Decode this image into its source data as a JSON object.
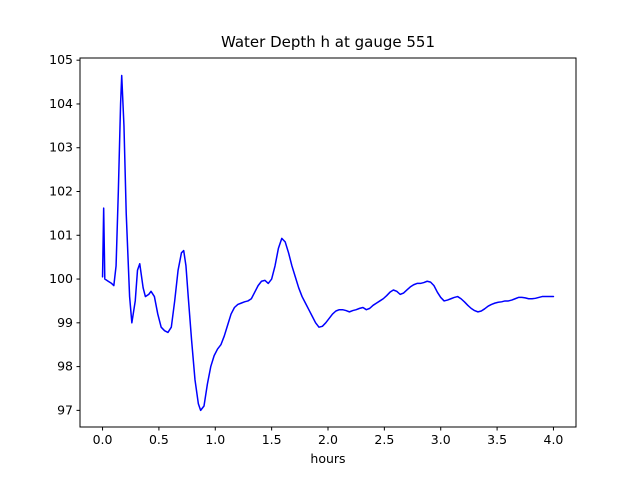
{
  "figure": {
    "background": "#ffffff"
  },
  "chart_data": {
    "type": "line",
    "title": "Water Depth h at gauge 551",
    "xlabel": "hours",
    "ylabel": "",
    "legend": "none",
    "grid": false,
    "line_color": "#0000ff",
    "xlim": [
      -0.2,
      4.2
    ],
    "ylim": [
      96.62,
      105.05
    ],
    "xticks": [
      0.0,
      0.5,
      1.0,
      1.5,
      2.0,
      2.5,
      3.0,
      3.5,
      4.0
    ],
    "xtick_labels": [
      "0.0",
      "0.5",
      "1.0",
      "1.5",
      "2.0",
      "2.5",
      "3.0",
      "3.5",
      "4.0"
    ],
    "yticks": [
      97,
      98,
      99,
      100,
      101,
      102,
      103,
      104,
      105
    ],
    "ytick_labels": [
      "97",
      "98",
      "99",
      "100",
      "101",
      "102",
      "103",
      "104",
      "105"
    ],
    "points": [
      [
        0.0,
        100.05
      ],
      [
        0.01,
        101.62
      ],
      [
        0.02,
        100.0
      ],
      [
        0.05,
        99.95
      ],
      [
        0.08,
        99.9
      ],
      [
        0.1,
        99.85
      ],
      [
        0.12,
        100.3
      ],
      [
        0.14,
        102.0
      ],
      [
        0.16,
        104.0
      ],
      [
        0.17,
        104.65
      ],
      [
        0.19,
        103.5
      ],
      [
        0.21,
        101.5
      ],
      [
        0.24,
        99.6
      ],
      [
        0.26,
        99.0
      ],
      [
        0.29,
        99.5
      ],
      [
        0.31,
        100.2
      ],
      [
        0.33,
        100.35
      ],
      [
        0.36,
        99.8
      ],
      [
        0.38,
        99.6
      ],
      [
        0.41,
        99.65
      ],
      [
        0.43,
        99.72
      ],
      [
        0.46,
        99.6
      ],
      [
        0.49,
        99.2
      ],
      [
        0.52,
        98.9
      ],
      [
        0.55,
        98.82
      ],
      [
        0.58,
        98.78
      ],
      [
        0.61,
        98.9
      ],
      [
        0.64,
        99.5
      ],
      [
        0.67,
        100.2
      ],
      [
        0.7,
        100.6
      ],
      [
        0.72,
        100.65
      ],
      [
        0.74,
        100.3
      ],
      [
        0.76,
        99.6
      ],
      [
        0.79,
        98.6
      ],
      [
        0.82,
        97.7
      ],
      [
        0.85,
        97.15
      ],
      [
        0.87,
        97.0
      ],
      [
        0.9,
        97.1
      ],
      [
        0.93,
        97.6
      ],
      [
        0.96,
        98.0
      ],
      [
        0.99,
        98.25
      ],
      [
        1.02,
        98.4
      ],
      [
        1.05,
        98.5
      ],
      [
        1.08,
        98.7
      ],
      [
        1.11,
        98.95
      ],
      [
        1.14,
        99.2
      ],
      [
        1.17,
        99.35
      ],
      [
        1.2,
        99.42
      ],
      [
        1.23,
        99.45
      ],
      [
        1.26,
        99.48
      ],
      [
        1.29,
        99.5
      ],
      [
        1.32,
        99.55
      ],
      [
        1.35,
        99.7
      ],
      [
        1.38,
        99.85
      ],
      [
        1.41,
        99.95
      ],
      [
        1.44,
        99.97
      ],
      [
        1.47,
        99.9
      ],
      [
        1.5,
        100.0
      ],
      [
        1.53,
        100.3
      ],
      [
        1.56,
        100.7
      ],
      [
        1.59,
        100.93
      ],
      [
        1.62,
        100.85
      ],
      [
        1.65,
        100.6
      ],
      [
        1.68,
        100.3
      ],
      [
        1.71,
        100.05
      ],
      [
        1.74,
        99.8
      ],
      [
        1.77,
        99.6
      ],
      [
        1.8,
        99.45
      ],
      [
        1.83,
        99.3
      ],
      [
        1.86,
        99.15
      ],
      [
        1.89,
        99.0
      ],
      [
        1.92,
        98.9
      ],
      [
        1.95,
        98.92
      ],
      [
        1.98,
        99.0
      ],
      [
        2.01,
        99.1
      ],
      [
        2.04,
        99.2
      ],
      [
        2.07,
        99.27
      ],
      [
        2.1,
        99.3
      ],
      [
        2.13,
        99.3
      ],
      [
        2.16,
        99.28
      ],
      [
        2.19,
        99.25
      ],
      [
        2.22,
        99.28
      ],
      [
        2.25,
        99.3
      ],
      [
        2.28,
        99.33
      ],
      [
        2.31,
        99.35
      ],
      [
        2.34,
        99.3
      ],
      [
        2.37,
        99.33
      ],
      [
        2.4,
        99.4
      ],
      [
        2.43,
        99.45
      ],
      [
        2.46,
        99.5
      ],
      [
        2.49,
        99.55
      ],
      [
        2.52,
        99.62
      ],
      [
        2.55,
        99.7
      ],
      [
        2.58,
        99.75
      ],
      [
        2.61,
        99.72
      ],
      [
        2.64,
        99.65
      ],
      [
        2.67,
        99.68
      ],
      [
        2.7,
        99.75
      ],
      [
        2.73,
        99.82
      ],
      [
        2.76,
        99.87
      ],
      [
        2.79,
        99.9
      ],
      [
        2.82,
        99.9
      ],
      [
        2.85,
        99.92
      ],
      [
        2.88,
        99.95
      ],
      [
        2.91,
        99.93
      ],
      [
        2.94,
        99.85
      ],
      [
        2.97,
        99.7
      ],
      [
        3.0,
        99.58
      ],
      [
        3.03,
        99.5
      ],
      [
        3.06,
        99.52
      ],
      [
        3.09,
        99.55
      ],
      [
        3.12,
        99.58
      ],
      [
        3.15,
        99.6
      ],
      [
        3.18,
        99.55
      ],
      [
        3.21,
        99.48
      ],
      [
        3.24,
        99.4
      ],
      [
        3.27,
        99.33
      ],
      [
        3.3,
        99.28
      ],
      [
        3.33,
        99.25
      ],
      [
        3.36,
        99.27
      ],
      [
        3.39,
        99.32
      ],
      [
        3.42,
        99.38
      ],
      [
        3.45,
        99.42
      ],
      [
        3.48,
        99.45
      ],
      [
        3.51,
        99.47
      ],
      [
        3.54,
        99.48
      ],
      [
        3.57,
        99.5
      ],
      [
        3.6,
        99.5
      ],
      [
        3.63,
        99.52
      ],
      [
        3.66,
        99.55
      ],
      [
        3.69,
        99.58
      ],
      [
        3.72,
        99.58
      ],
      [
        3.75,
        99.57
      ],
      [
        3.78,
        99.55
      ],
      [
        3.81,
        99.55
      ],
      [
        3.84,
        99.56
      ],
      [
        3.87,
        99.58
      ],
      [
        3.9,
        99.6
      ],
      [
        3.93,
        99.6
      ],
      [
        3.96,
        99.6
      ],
      [
        4.0,
        99.6
      ]
    ]
  }
}
